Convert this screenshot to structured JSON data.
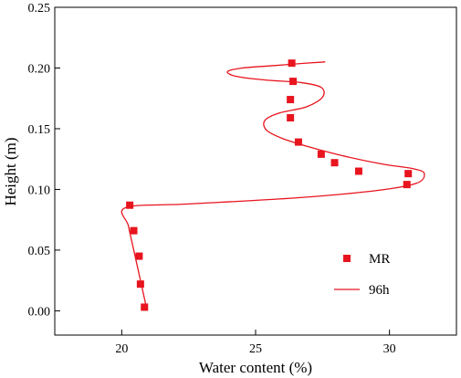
{
  "chart_data": {
    "type": "scatter",
    "xlabel": "Water content (%)",
    "ylabel": "Height (m)",
    "xlim": [
      17.5,
      32.5
    ],
    "ylim": [
      -0.02,
      0.25
    ],
    "x_ticks": [
      20,
      25,
      30
    ],
    "y_ticks": [
      0.0,
      0.05,
      0.1,
      0.15,
      0.2,
      0.25
    ],
    "grid": false,
    "legend_position": "bottom-right",
    "series": [
      {
        "name": "MR",
        "kind": "scatter",
        "marker": "square",
        "color": "#e8141e",
        "points": [
          {
            "x": 26.35,
            "y": 0.204
          },
          {
            "x": 26.4,
            "y": 0.189
          },
          {
            "x": 26.3,
            "y": 0.174
          },
          {
            "x": 26.3,
            "y": 0.159
          },
          {
            "x": 26.6,
            "y": 0.139
          },
          {
            "x": 27.45,
            "y": 0.129
          },
          {
            "x": 27.95,
            "y": 0.122
          },
          {
            "x": 28.85,
            "y": 0.115
          },
          {
            "x": 30.7,
            "y": 0.113
          },
          {
            "x": 30.65,
            "y": 0.104
          },
          {
            "x": 20.3,
            "y": 0.087
          },
          {
            "x": 20.45,
            "y": 0.066
          },
          {
            "x": 20.65,
            "y": 0.045
          },
          {
            "x": 20.7,
            "y": 0.022
          },
          {
            "x": 20.85,
            "y": 0.003
          }
        ]
      },
      {
        "name": "96h",
        "kind": "line",
        "color": "#e8141e",
        "points": [
          {
            "x": 20.95,
            "y": 0.0
          },
          {
            "x": 20.7,
            "y": 0.025
          },
          {
            "x": 20.45,
            "y": 0.05
          },
          {
            "x": 20.25,
            "y": 0.07
          },
          {
            "x": 20.15,
            "y": 0.085
          },
          {
            "x": 22.5,
            "y": 0.088
          },
          {
            "x": 26.5,
            "y": 0.093
          },
          {
            "x": 29.5,
            "y": 0.099
          },
          {
            "x": 31.0,
            "y": 0.105
          },
          {
            "x": 31.3,
            "y": 0.113
          },
          {
            "x": 30.9,
            "y": 0.117
          },
          {
            "x": 29.7,
            "y": 0.121
          },
          {
            "x": 28.2,
            "y": 0.128
          },
          {
            "x": 27.0,
            "y": 0.135
          },
          {
            "x": 26.0,
            "y": 0.142
          },
          {
            "x": 25.4,
            "y": 0.149
          },
          {
            "x": 25.35,
            "y": 0.157
          },
          {
            "x": 25.9,
            "y": 0.163
          },
          {
            "x": 26.9,
            "y": 0.168
          },
          {
            "x": 27.5,
            "y": 0.176
          },
          {
            "x": 27.45,
            "y": 0.184
          },
          {
            "x": 26.7,
            "y": 0.188
          },
          {
            "x": 25.4,
            "y": 0.19
          },
          {
            "x": 24.3,
            "y": 0.193
          },
          {
            "x": 23.95,
            "y": 0.197
          },
          {
            "x": 24.5,
            "y": 0.2
          },
          {
            "x": 25.7,
            "y": 0.202
          },
          {
            "x": 26.9,
            "y": 0.204
          },
          {
            "x": 27.6,
            "y": 0.205
          }
        ]
      }
    ]
  }
}
